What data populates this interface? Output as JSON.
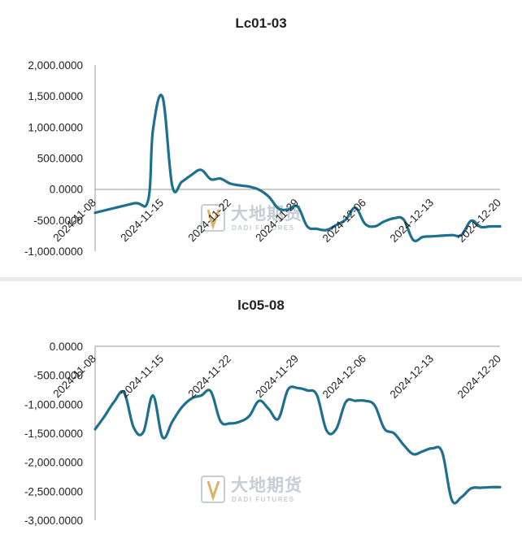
{
  "chart_data": [
    {
      "type": "line",
      "title": "Lc01-03",
      "ylim": [
        -1000,
        2000
      ],
      "yticks": [
        "2,000.0000",
        "1,500.0000",
        "1,000.0000",
        "500.0000",
        "0.0000",
        "-500.0000",
        "-1,000.0000"
      ],
      "ytick_values": [
        2000,
        1500,
        1000,
        500,
        0,
        -500,
        -1000
      ],
      "x_tick_labels": [
        "2024-11-08",
        "2024-11-15",
        "2024-11-22",
        "2024-11-29",
        "2024-12-06",
        "2024-12-13",
        "2024-12-20"
      ],
      "x_tick_values": [
        0,
        7,
        14,
        21,
        28,
        35,
        42
      ],
      "xlim": [
        0,
        42
      ],
      "grid": false,
      "legend": "none",
      "series": [
        {
          "x": [
            0,
            4,
            5.5,
            6,
            7,
            8,
            9,
            10,
            11,
            12,
            13,
            14,
            15,
            16,
            17,
            18,
            19,
            20,
            21,
            22,
            23,
            24,
            25,
            26,
            27,
            28,
            29,
            30,
            31,
            32,
            33,
            34,
            35,
            36,
            37,
            38,
            39,
            40,
            41,
            42
          ],
          "values": [
            -380,
            -230,
            -180,
            950,
            1480,
            50,
            120,
            230,
            310,
            160,
            170,
            90,
            60,
            40,
            -10,
            -120,
            -310,
            -330,
            -280,
            -600,
            -640,
            -660,
            -580,
            -490,
            -300,
            -560,
            -600,
            -520,
            -470,
            -490,
            -820,
            -770,
            -760,
            -750,
            -740,
            -740,
            -510,
            -610,
            -600,
            -600
          ]
        }
      ]
    },
    {
      "type": "line",
      "title": "lc05-08",
      "ylim": [
        -3000,
        0
      ],
      "yticks": [
        "0.0000",
        "-500.0000",
        "-1,000.0000",
        "-1,500.0000",
        "-2,000.0000",
        "-2,500.0000",
        "-3,000.0000"
      ],
      "ytick_values": [
        0,
        -500,
        -1000,
        -1500,
        -2000,
        -2500,
        -3000
      ],
      "x_tick_labels": [
        "2024-11-08",
        "2024-11-15",
        "2024-11-22",
        "2024-11-29",
        "2024-12-06",
        "2024-12-13",
        "2024-12-20"
      ],
      "x_tick_values": [
        0,
        7,
        14,
        21,
        28,
        35,
        42
      ],
      "xlim": [
        0,
        42
      ],
      "grid": false,
      "legend": "none",
      "series": [
        {
          "x": [
            0,
            1,
            2,
            3,
            4,
            5,
            6,
            7,
            8,
            9,
            10,
            11,
            12,
            13,
            14,
            15,
            16,
            17,
            18,
            19,
            20,
            21,
            22,
            23,
            24,
            25,
            26,
            27,
            28,
            29,
            30,
            31,
            32,
            33,
            34,
            35,
            36,
            37,
            38,
            39,
            40,
            41,
            42
          ],
          "values": [
            -1430,
            -1200,
            -950,
            -800,
            -1400,
            -1480,
            -850,
            -1570,
            -1300,
            -1050,
            -900,
            -850,
            -780,
            -1290,
            -1330,
            -1300,
            -1200,
            -940,
            -1080,
            -1250,
            -750,
            -720,
            -760,
            -840,
            -1450,
            -1430,
            -960,
            -940,
            -940,
            -1020,
            -1420,
            -1500,
            -1700,
            -1860,
            -1810,
            -1760,
            -1830,
            -2650,
            -2600,
            -2450,
            -2440,
            -2430,
            -2430
          ]
        }
      ]
    }
  ],
  "watermark": {
    "text": "大地期货",
    "subtext": "DADI FUTURES",
    "color": "#c6cdd6"
  },
  "colors": {
    "series": "#1f6f8f",
    "axis": "#999999",
    "divider": "#e9e9e9"
  }
}
